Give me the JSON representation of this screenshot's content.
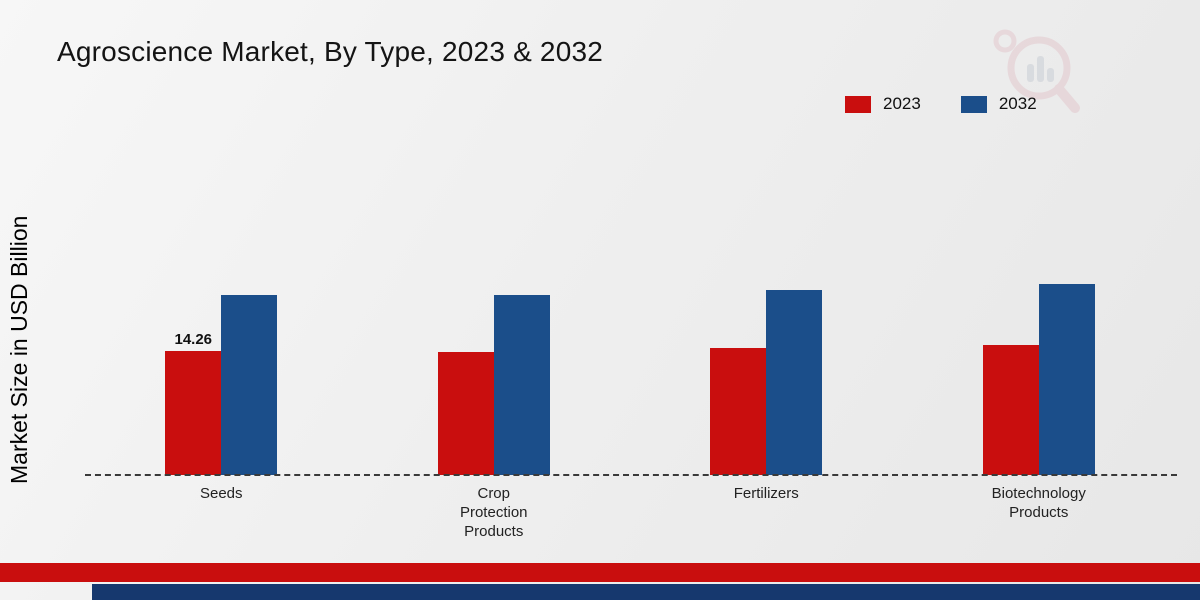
{
  "title": "Agroscience Market, By Type, 2023 & 2032",
  "ylabel": "Market Size in USD Billion",
  "legend": [
    {
      "label": "2023",
      "color": "#c90e0e"
    },
    {
      "label": "2032",
      "color": "#1b4e8a"
    }
  ],
  "colors": {
    "red": "#c90e0e",
    "blue": "#1b4e8a",
    "stripe_red": "#c90e0e",
    "stripe_blue": "#16386e"
  },
  "chart_data": {
    "type": "bar",
    "title": "Agroscience Market, By Type, 2023 & 2032",
    "xlabel": "",
    "ylabel": "Market Size in USD Billion",
    "categories": [
      "Seeds",
      "Crop Protection Products",
      "Fertilizers",
      "Biotechnology Products"
    ],
    "series": [
      {
        "name": "2023",
        "color": "#c90e0e",
        "values": [
          14.26,
          14.1,
          14.6,
          15.0
        ]
      },
      {
        "name": "2032",
        "color": "#1b4e8a",
        "values": [
          20.7,
          20.7,
          21.3,
          22.0
        ]
      }
    ],
    "annotations": [
      {
        "series": "2023",
        "category_index": 0,
        "text": "14.26"
      }
    ],
    "ylim": [
      0,
      24
    ],
    "legend_position": "top-right",
    "grid": false,
    "baseline_dashed": true,
    "pixels_per_unit": 8.7
  }
}
